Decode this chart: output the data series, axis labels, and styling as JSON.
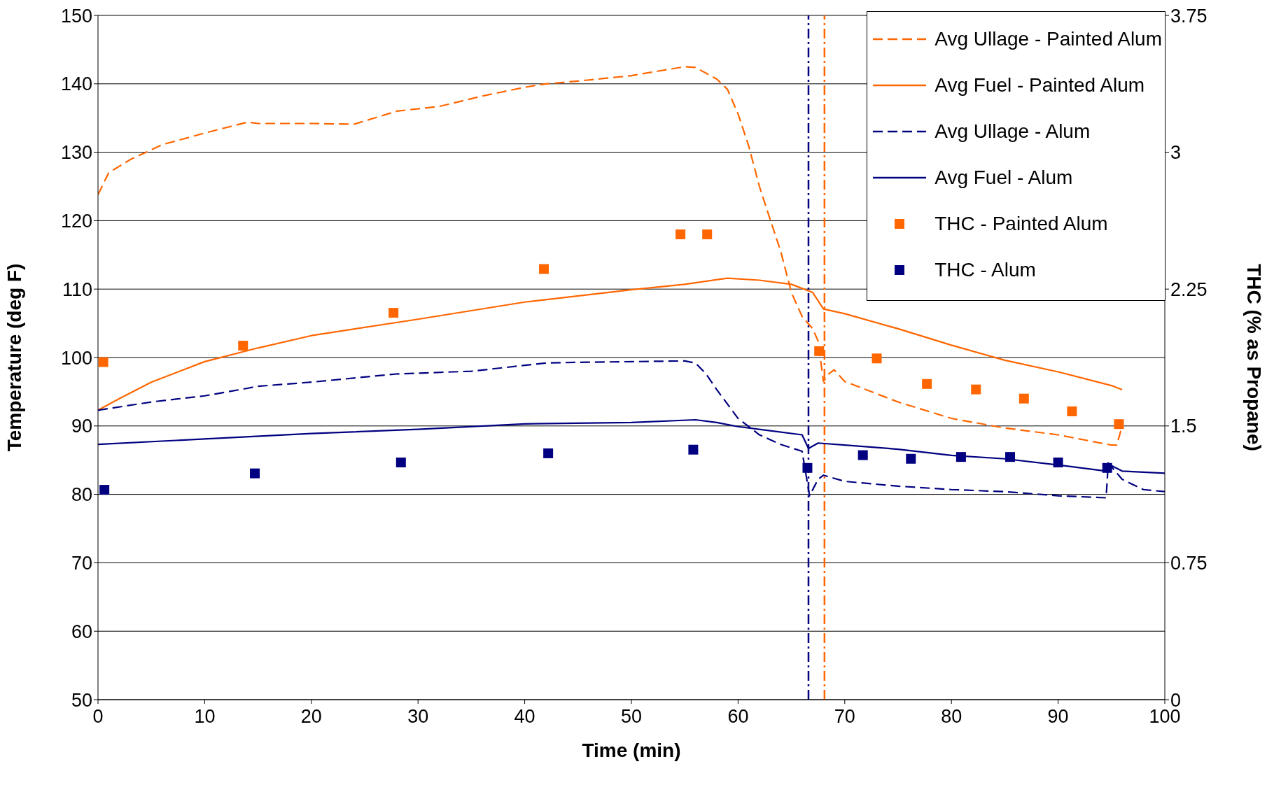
{
  "chart_data": {
    "type": "line",
    "xlabel": "Time (min)",
    "ylabel": "Temperature (deg F)",
    "y2label": "THC (% as Propane)",
    "xlim": [
      0,
      100
    ],
    "xticks": [
      0,
      10,
      20,
      30,
      40,
      50,
      60,
      70,
      80,
      90,
      100
    ],
    "ylim": [
      50,
      150
    ],
    "yticks": [
      50,
      60,
      70,
      80,
      90,
      100,
      110,
      120,
      130,
      140,
      150
    ],
    "y2lim": [
      0,
      3.75
    ],
    "y2ticks": [
      0,
      0.75,
      1.5,
      2.25,
      3,
      3.75
    ],
    "grid": "y",
    "legend": "top right",
    "ref_lines": [
      {
        "axis": "x",
        "value": 66.6,
        "color": "#000080",
        "line_style": "dashdot"
      },
      {
        "axis": "x",
        "value": 68.1,
        "color": "#ff6600",
        "line_style": "dashdot"
      }
    ],
    "series": [
      {
        "name": "Avg Ullage - Painted Alum",
        "type": "line",
        "color": "#ff6600",
        "line_style": "dashed",
        "marker": "none",
        "x": [
          0,
          1,
          3,
          6,
          10,
          14,
          15,
          20,
          24,
          28,
          32,
          36,
          40,
          42,
          45,
          50,
          55,
          56,
          58,
          59,
          60,
          61,
          62,
          63,
          64,
          65,
          66,
          67,
          67.5,
          68,
          68.5,
          69,
          70,
          72,
          75,
          80,
          85,
          90,
          95,
          95.5,
          96
        ],
        "values": [
          123.8,
          127,
          128.9,
          131.1,
          132.8,
          134.4,
          134.2,
          134.2,
          134.1,
          136,
          136.7,
          138.2,
          139.5,
          140,
          140.4,
          141.2,
          142.5,
          142.4,
          140.7,
          139.2,
          135.6,
          130.9,
          125,
          120.2,
          115.5,
          109.5,
          106,
          104.2,
          102.4,
          96.5,
          97.6,
          98.2,
          96.5,
          95.3,
          93.5,
          91.1,
          89.7,
          88.7,
          87.2,
          87.2,
          90
        ]
      },
      {
        "name": "Avg Fuel - Painted Alum",
        "type": "line",
        "color": "#ff6600",
        "line_style": "solid",
        "marker": "none",
        "x": [
          0,
          2,
          5,
          10,
          15,
          20,
          30,
          40,
          50,
          55,
          59,
          62,
          65,
          67,
          68,
          70,
          75,
          80,
          85,
          90,
          95,
          96
        ],
        "values": [
          92.3,
          94,
          96.4,
          99.4,
          101.4,
          103.2,
          105.6,
          108.1,
          109.9,
          110.7,
          111.6,
          111.3,
          110.7,
          109.5,
          107.1,
          106.4,
          104.2,
          101.8,
          99.6,
          97.9,
          95.9,
          95.3
        ]
      },
      {
        "name": "Avg Ullage - Alum",
        "type": "line",
        "color": "#000080",
        "line_style": "dashed",
        "marker": "none",
        "x": [
          0,
          5,
          10,
          14,
          15,
          20,
          28,
          35,
          42,
          45,
          55,
          56,
          57,
          58,
          60,
          62,
          64,
          66,
          66.7,
          67.5,
          68,
          70,
          75,
          80,
          85,
          90,
          94.5,
          94.7,
          96,
          98,
          100
        ],
        "values": [
          92.3,
          93.5,
          94.4,
          95.5,
          95.8,
          96.4,
          97.6,
          98,
          99.2,
          99.3,
          99.5,
          99.2,
          97.6,
          95.3,
          91.1,
          88.7,
          87.3,
          86.3,
          79.8,
          82.2,
          82.8,
          81.9,
          81.2,
          80.7,
          80.4,
          79.8,
          79.5,
          84.6,
          82.2,
          80.7,
          80.4
        ]
      },
      {
        "name": "Avg Fuel - Alum",
        "type": "line",
        "color": "#000080",
        "line_style": "solid",
        "marker": "none",
        "x": [
          0,
          10,
          20,
          30,
          40,
          50,
          56,
          58,
          60,
          63,
          66,
          66.6,
          67.5,
          70,
          75,
          80,
          85,
          90,
          94.5,
          95,
          96,
          100
        ],
        "values": [
          87.3,
          88.1,
          88.9,
          89.5,
          90.3,
          90.5,
          90.9,
          90.5,
          89.9,
          89.3,
          88.7,
          86.7,
          87.5,
          87.2,
          86.6,
          85.7,
          85.2,
          84.3,
          83.4,
          84.2,
          83.4,
          83.1
        ]
      },
      {
        "name": "THC - Painted Alum",
        "type": "scatter",
        "axis": "y2",
        "color": "#ff6600",
        "marker": "square",
        "x": [
          0.5,
          13.6,
          27.7,
          41.8,
          54.6,
          57.1,
          67.6,
          73,
          77.7,
          82.3,
          86.8,
          91.3,
          95.7
        ],
        "values": [
          1.85,
          1.94,
          2.12,
          2.36,
          2.55,
          2.55,
          1.91,
          1.87,
          1.73,
          1.7,
          1.65,
          1.58,
          1.51
        ]
      },
      {
        "name": "THC - Alum",
        "type": "scatter",
        "axis": "y2",
        "color": "#000080",
        "marker": "square",
        "x": [
          0.6,
          14.7,
          28.4,
          42.2,
          55.8,
          66.5,
          71.7,
          76.2,
          80.9,
          85.5,
          90,
          94.6
        ],
        "values": [
          1.15,
          1.24,
          1.3,
          1.35,
          1.37,
          1.27,
          1.34,
          1.32,
          1.33,
          1.33,
          1.3,
          1.27
        ]
      }
    ]
  }
}
